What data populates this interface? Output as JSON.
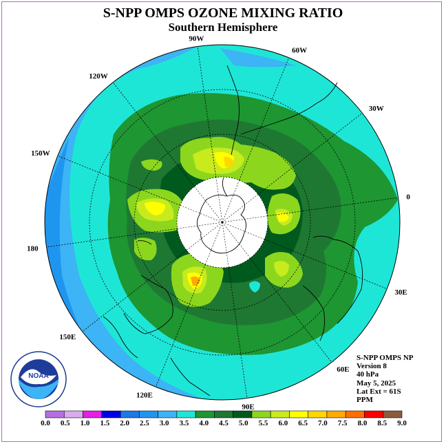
{
  "title": "S-NPP OMPS OZONE MIXING RATIO",
  "subtitle": "Southern Hemisphere",
  "longitude_labels": [
    {
      "text": "90W",
      "lon": -90
    },
    {
      "text": "60W",
      "lon": -60
    },
    {
      "text": "30W",
      "lon": -30
    },
    {
      "text": "0",
      "lon": 0
    },
    {
      "text": "30E",
      "lon": 30
    },
    {
      "text": "60E",
      "lon": 60
    },
    {
      "text": "90E",
      "lon": 90
    },
    {
      "text": "120E",
      "lon": 120
    },
    {
      "text": "150E",
      "lon": 150
    },
    {
      "text": "180",
      "lon": 180
    },
    {
      "text": "150W",
      "lon": -150
    },
    {
      "text": "120W",
      "lon": -120
    }
  ],
  "info": {
    "line1": "S-NPP OMPS NP",
    "line2": "Version 8",
    "line3": "40 hPa",
    "line4": "May 5, 2025",
    "line5": "Lat Ext = 61S",
    "line6": "PPM"
  },
  "colorbar": {
    "colors": [
      "#b56fe0",
      "#dcaaf0",
      "#e61ee6",
      "#0000e6",
      "#1e78e6",
      "#1e96f0",
      "#3cb4f5",
      "#1ee6d7",
      "#1e9632",
      "#1e7832",
      "#005a1e",
      "#8cd71e",
      "#c8eb1e",
      "#ffff00",
      "#ffd700",
      "#ffaa00",
      "#ff6e00",
      "#ff0000",
      "#8c5a3c"
    ],
    "tick_labels": [
      "0.0",
      "0.5",
      "1.0",
      "1.5",
      "2.0",
      "2.5",
      "3.0",
      "3.5",
      "4.0",
      "4.5",
      "5.0",
      "5.5",
      "6.0",
      "6.5",
      "7.0",
      "7.5",
      "8.0",
      "8.5",
      "9.0"
    ]
  },
  "logo": {
    "text": "NOAA",
    "ring_text": "NATIONAL OCEANIC AND ATMOSPHERIC ADMINISTRATION · U.S. DEPARTMENT OF COMMERCE"
  }
}
